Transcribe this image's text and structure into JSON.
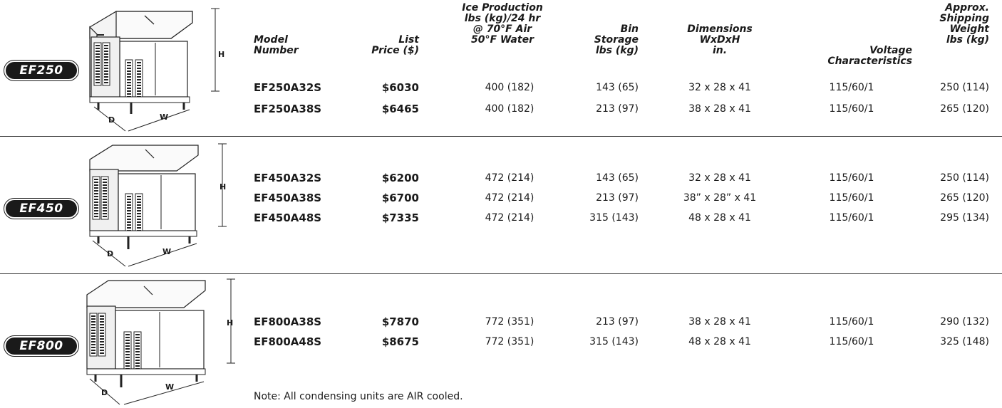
{
  "headers": {
    "model": "Model\nNumber",
    "price": "List\nPrice ($)",
    "ice": "Ice Production\nlbs (kg)/24 hr\n@ 70°F Air\n50°F Water",
    "bin": "Bin\nStorage\nlbs (kg)",
    "dims": "Dimensions\nWxDxH\nin.",
    "voltage": "Voltage\nCharacteristics",
    "weight": "Approx.\nShipping\nWeight\nlbs (kg)"
  },
  "groups": [
    {
      "badge": "EF250",
      "labels": {
        "h": "H",
        "d": "D",
        "w": "W"
      },
      "rows": [
        {
          "model": "EF250A32S",
          "price": "$6030",
          "ice": "400 (182)",
          "bin": "143 (65)",
          "dims": "32 x 28 x 41",
          "voltage": "115/60/1",
          "weight": "250 (114)"
        },
        {
          "model": "EF250A38S",
          "price": "$6465",
          "ice": "400 (182)",
          "bin": "213 (97)",
          "dims": "38 x 28 x 41",
          "voltage": "115/60/1",
          "weight": "265 (120)"
        }
      ]
    },
    {
      "badge": "EF450",
      "labels": {
        "h": "H",
        "d": "D",
        "w": "W"
      },
      "rows": [
        {
          "model": "EF450A32S",
          "price": "$6200",
          "ice": "472 (214)",
          "bin": "143 (65)",
          "dims": "32 x 28 x 41",
          "voltage": "115/60/1",
          "weight": "250 (114)"
        },
        {
          "model": "EF450A38S",
          "price": "$6700",
          "ice": "472 (214)",
          "bin": "213 (97)",
          "dims": "38” x 28” x 41",
          "voltage": "115/60/1",
          "weight": "265 (120)"
        },
        {
          "model": "EF450A48S",
          "price": "$7335",
          "ice": "472 (214)",
          "bin": "315 (143)",
          "dims": "48 x 28 x 41",
          "voltage": "115/60/1",
          "weight": "295 (134)"
        }
      ]
    },
    {
      "badge": "EF800",
      "labels": {
        "h": "H",
        "d": "D",
        "w": "W"
      },
      "rows": [
        {
          "model": "EF800A38S",
          "price": "$7870",
          "ice": "772 (351)",
          "bin": "213 (97)",
          "dims": "38 x 28 x 41",
          "voltage": "115/60/1",
          "weight": "290 (132)"
        },
        {
          "model": "EF800A48S",
          "price": "$8675",
          "ice": "772 (351)",
          "bin": "315 (143)",
          "dims": "48 x 28 x 41",
          "voltage": "115/60/1",
          "weight": "325 (148)"
        }
      ]
    }
  ],
  "note": "Note:  All condensing units are AIR cooled."
}
